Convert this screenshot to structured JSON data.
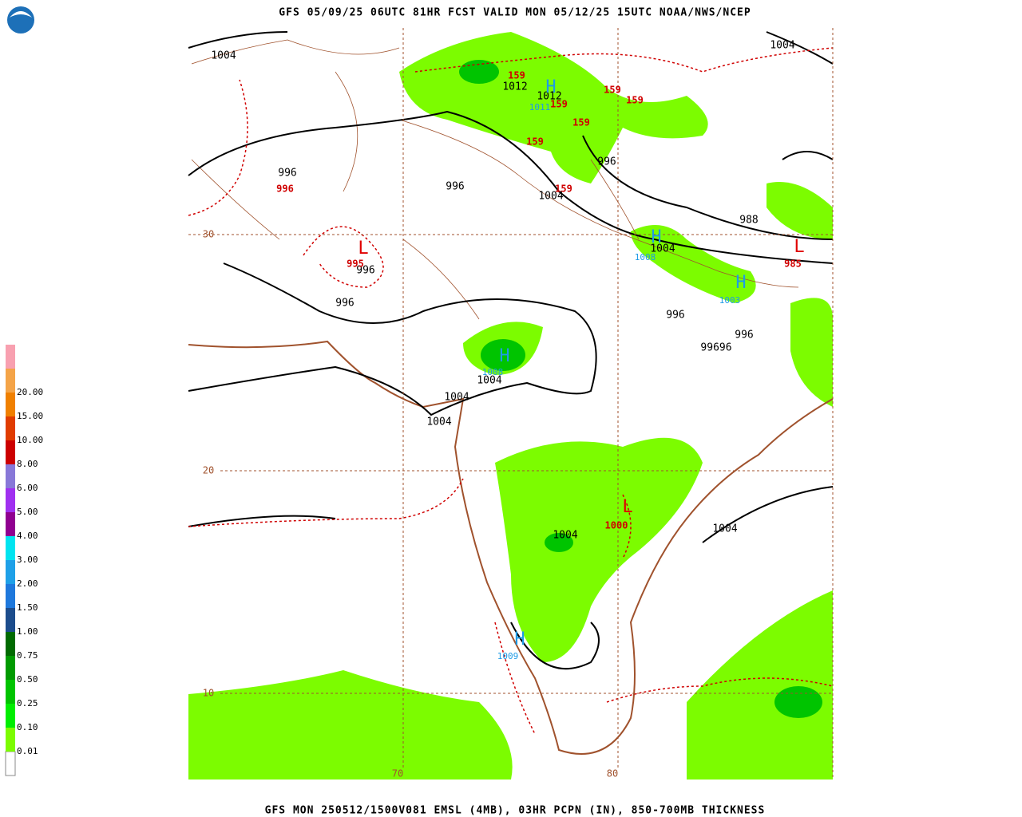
{
  "header": {
    "title": "GFS 05/09/25 06UTC 81HR FCST VALID MON 05/12/25 15UTC NOAA/NWS/NCEP"
  },
  "footer": {
    "caption": "GFS MON 250512/1500V081 EMSL (4MB), 03HR PCPN (IN), 850-700MB THICKNESS"
  },
  "legend": {
    "items": [
      {
        "label": "0.01",
        "color": "#7cfc00"
      },
      {
        "label": "0.10",
        "color": "#00ee00"
      },
      {
        "label": "0.25",
        "color": "#00c400"
      },
      {
        "label": "0.50",
        "color": "#009a00"
      },
      {
        "label": "0.75",
        "color": "#006a00"
      },
      {
        "label": "1.00",
        "color": "#1c4c8c"
      },
      {
        "label": "1.50",
        "color": "#1e78dc"
      },
      {
        "label": "2.00",
        "color": "#1ea0e8"
      },
      {
        "label": "3.00",
        "color": "#00e4f0"
      },
      {
        "label": "4.00",
        "color": "#900090"
      },
      {
        "label": "5.00",
        "color": "#a030f0"
      },
      {
        "label": "6.00",
        "color": "#8878d8"
      },
      {
        "label": "8.00",
        "color": "#cc0000"
      },
      {
        "label": "10.00",
        "color": "#e03c00"
      },
      {
        "label": "15.00",
        "color": "#f08000"
      },
      {
        "label": "20.00",
        "color": "#f4a448"
      },
      {
        "label": "",
        "color": "#f8a0b0"
      }
    ]
  },
  "map": {
    "lat_labels": [
      "30",
      "20",
      "10"
    ],
    "lon_labels": [
      "70",
      "80"
    ],
    "pressure_labels": [
      "1004",
      "1004",
      "1012",
      "1012",
      "996",
      "996",
      "996",
      "1004",
      "988",
      "1004",
      "996",
      "996",
      "996",
      "996",
      "99696",
      "1004",
      "1004",
      "1004",
      "1004",
      "1004"
    ],
    "thickness_labels": [
      "159",
      "159",
      "159",
      "159",
      "159",
      "159",
      "159",
      "996",
      "995",
      "985",
      "1000"
    ],
    "highs": [
      {
        "symbol": "H",
        "value": "1011"
      },
      {
        "symbol": "H",
        "value": "1008"
      },
      {
        "symbol": "H",
        "value": "1003"
      },
      {
        "symbol": "H",
        "value": "1008"
      },
      {
        "symbol": "H",
        "value": "1009"
      }
    ],
    "lows": [
      {
        "symbol": "L"
      },
      {
        "symbol": "L"
      },
      {
        "symbol": "L"
      }
    ]
  }
}
